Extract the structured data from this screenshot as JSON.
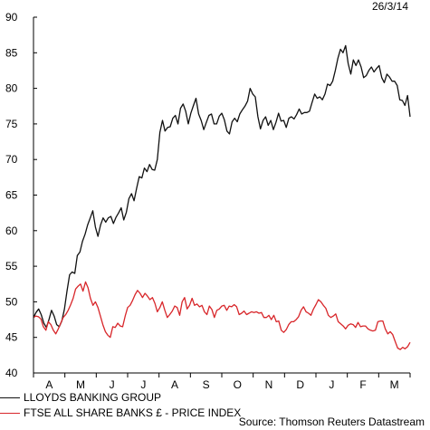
{
  "chart_data": {
    "type": "line",
    "date_label": "26/3/14",
    "ylim": [
      40,
      90
    ],
    "yticks": [
      40,
      45,
      50,
      55,
      60,
      65,
      70,
      75,
      80,
      85,
      90
    ],
    "xlabels": [
      "A",
      "M",
      "J",
      "J",
      "A",
      "S",
      "O",
      "N",
      "D",
      "J",
      "F",
      "M"
    ],
    "source": "Source: Thomson Reuters Datastream",
    "colors": {
      "lloyds": "#111111",
      "ftse": "#d8262a"
    },
    "series": [
      {
        "name": "LLOYDS BANKING GROUP",
        "values": [
          47.8,
          48.5,
          49.0,
          48.2,
          47.0,
          46.4,
          47.5,
          48.8,
          48.0,
          46.8,
          46.5,
          47.3,
          49.0,
          51.5,
          53.8,
          54.2,
          54.0,
          56.5,
          57.0,
          58.5,
          59.5,
          60.8,
          61.8,
          62.8,
          60.5,
          59.2,
          60.8,
          61.8,
          61.2,
          61.8,
          62.0,
          61.0,
          61.9,
          62.5,
          63.2,
          61.5,
          62.6,
          64.5,
          65.2,
          64.2,
          66.0,
          67.6,
          67.4,
          68.8,
          68.3,
          69.3,
          68.6,
          68.5,
          70.0,
          73.8,
          75.5,
          74.0,
          74.5,
          74.6,
          75.8,
          76.2,
          75.0,
          77.2,
          77.8,
          76.8,
          75.0,
          76.5,
          77.6,
          78.6,
          76.4,
          75.5,
          74.2,
          75.2,
          76.2,
          76.4,
          75.0,
          75.0,
          76.1,
          76.5,
          75.6,
          74.0,
          73.6,
          75.3,
          75.8,
          75.3,
          76.4,
          77.0,
          77.5,
          78.2,
          80.0,
          79.2,
          78.8,
          76.0,
          74.3,
          75.5,
          76.0,
          74.8,
          75.5,
          74.2,
          75.2,
          76.5,
          75.4,
          75.5,
          74.5,
          75.8,
          76.0,
          75.7,
          76.3,
          77.1,
          76.4,
          76.6,
          76.6,
          76.8,
          78.0,
          79.2,
          78.6,
          78.8,
          78.4,
          79.2,
          80.6,
          80.4,
          81.0,
          82.5,
          84.2,
          85.5,
          85.0,
          86.0,
          83.5,
          82.0,
          84.0,
          83.2,
          84.0,
          83.0,
          81.5,
          81.8,
          82.5,
          83.0,
          82.3,
          82.8,
          83.2,
          81.5,
          80.8,
          82.0,
          81.6,
          81.0,
          81.0,
          80.4,
          78.4,
          78.3,
          77.6,
          79.0,
          76.0
        ]
      },
      {
        "name": "FTSE ALL SHARE BANKS £ - PRICE INDEX",
        "values": [
          47.8,
          48.0,
          47.9,
          47.6,
          46.5,
          46.0,
          47.2,
          46.8,
          46.0,
          45.5,
          46.2,
          47.0,
          47.8,
          48.2,
          48.8,
          49.6,
          50.5,
          51.8,
          52.2,
          52.5,
          51.5,
          52.8,
          52.0,
          50.5,
          49.5,
          50.0,
          49.2,
          48.0,
          46.8,
          45.8,
          45.3,
          45.0,
          46.5,
          46.4,
          47.0,
          46.6,
          46.5,
          48.0,
          49.2,
          49.5,
          50.2,
          51.0,
          51.6,
          51.2,
          50.6,
          51.2,
          50.8,
          50.3,
          50.6,
          49.8,
          48.6,
          49.2,
          50.0,
          48.8,
          47.8,
          48.2,
          48.7,
          49.4,
          49.2,
          48.1,
          50.0,
          50.6,
          49.0,
          49.5,
          50.5,
          49.5,
          49.7,
          49.3,
          49.5,
          48.6,
          48.2,
          49.4,
          48.9,
          47.8,
          48.8,
          49.0,
          49.4,
          49.5,
          48.8,
          49.4,
          49.3,
          49.6,
          49.3,
          48.2,
          48.4,
          48.7,
          48.2,
          48.4,
          48.6,
          48.5,
          48.6,
          48.4,
          48.5,
          47.8,
          47.8,
          48.1,
          47.5,
          48.1,
          47.2,
          47.3,
          46.0,
          45.7,
          46.1,
          46.8,
          47.2,
          47.2,
          47.5,
          47.9,
          48.8,
          49.3,
          48.6,
          48.4,
          48.1,
          49.0,
          49.6,
          50.3,
          50.0,
          49.5,
          49.1,
          48.1,
          47.8,
          48.0,
          48.3,
          47.2,
          46.9,
          46.6,
          46.2,
          46.7,
          46.9,
          46.8,
          46.4,
          47.1,
          46.5,
          46.6,
          46.6,
          46.2,
          46.0,
          45.9,
          46.0,
          47.2,
          47.3,
          47.3,
          46.2,
          45.5,
          45.8,
          45.4,
          44.4,
          43.5,
          43.3,
          43.6,
          43.4,
          43.7,
          44.3
        ]
      }
    ]
  }
}
